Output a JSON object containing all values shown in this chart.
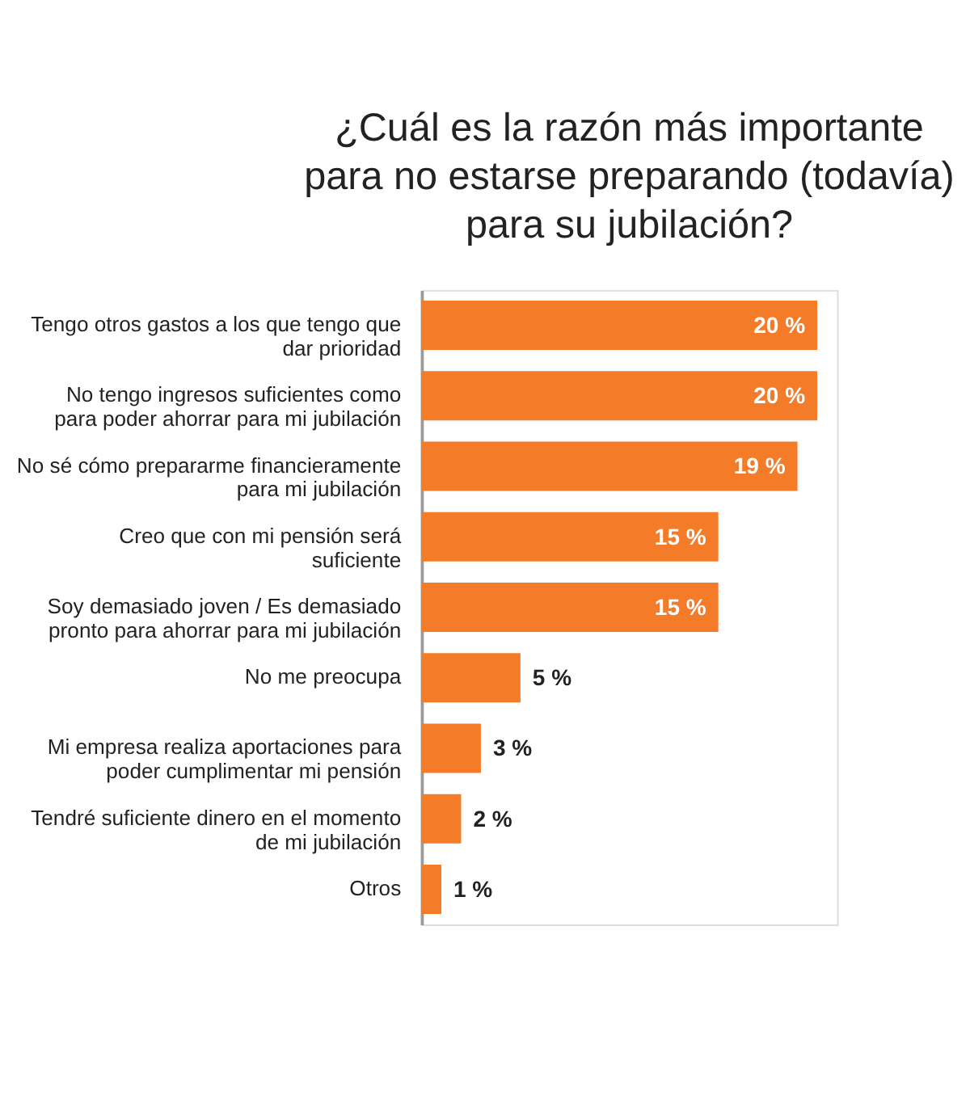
{
  "chart_data": {
    "type": "bar",
    "orientation": "horizontal",
    "title": "¿Cuál es la razón más importante para no estarse preparando (todavía) para su jubilación?",
    "categories": [
      "Tengo otros gastos a los que tengo que dar prioridad",
      "No tengo ingresos suficientes como para poder ahorrar para mi jubilación",
      "No sé cómo prepararme financieramente para mi jubilación",
      "Creo que con mi pensión será suficiente",
      "Soy demasiado joven / Es demasiado pronto para ahorrar para mi jubilación",
      "No me preocupa",
      "Mi empresa realiza aportaciones para poder cumplimentar mi pensión",
      "Tendré suficiente dinero en el momento de mi jubilación",
      "Otros"
    ],
    "values": [
      20,
      20,
      19,
      15,
      15,
      5,
      3,
      2,
      1
    ],
    "value_labels": [
      "20 %",
      "20 %",
      "19 %",
      "15 %",
      "15 %",
      "5 %",
      "3 %",
      "2 %",
      "1 %"
    ],
    "color": "#f47b27",
    "grid": false
  }
}
